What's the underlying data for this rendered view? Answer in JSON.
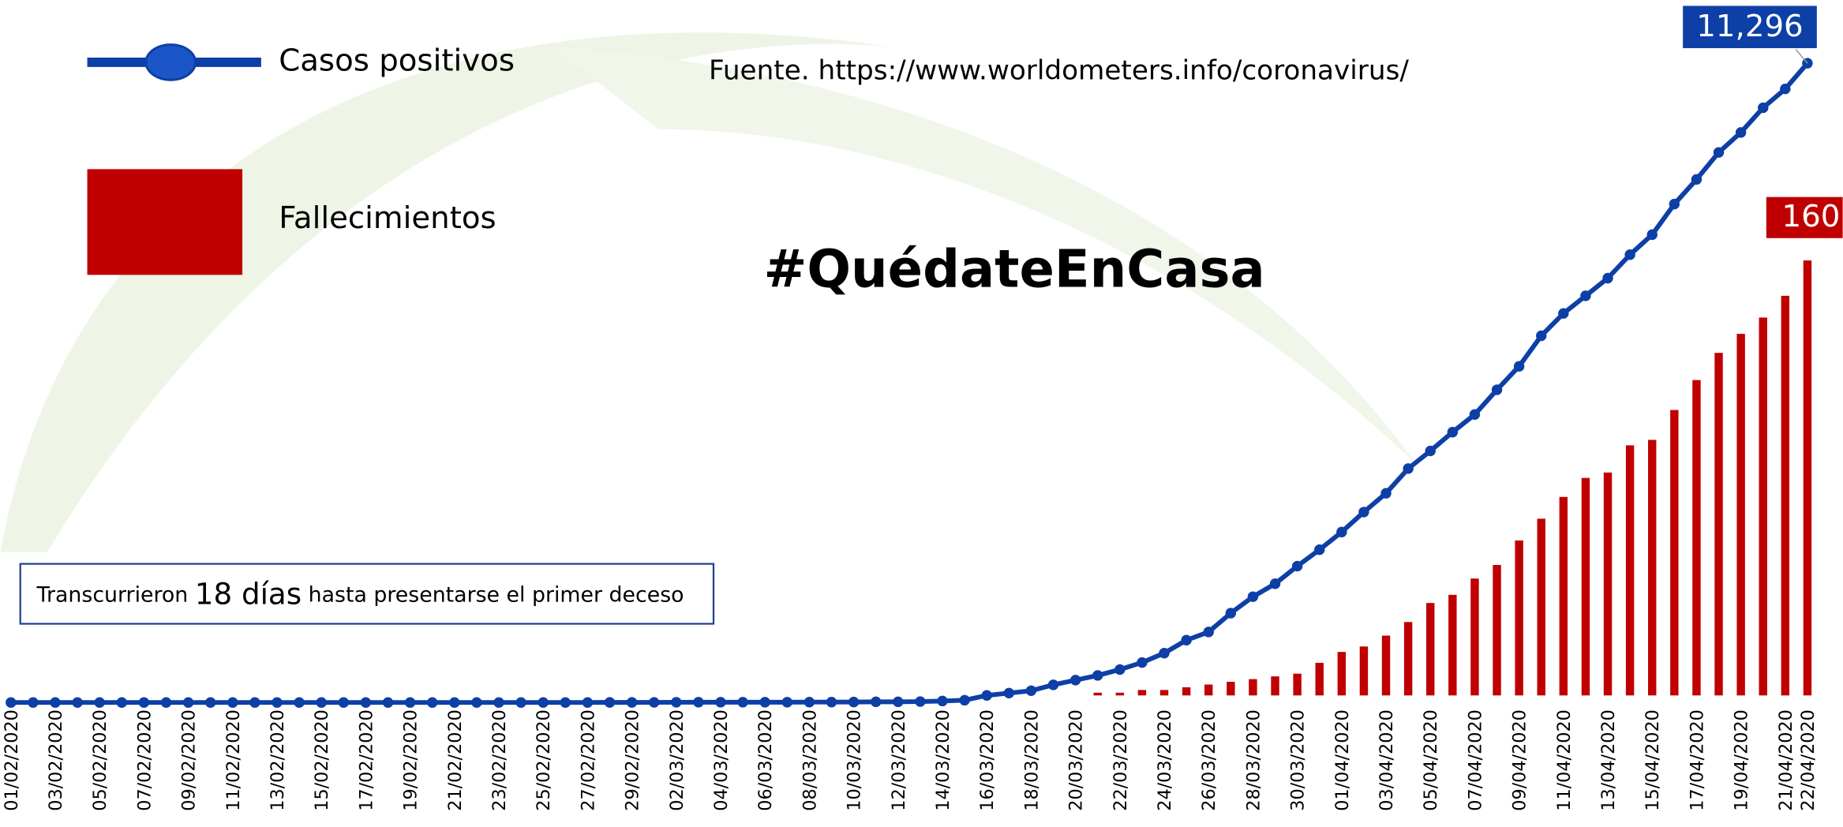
{
  "chart_data": {
    "type": "line-bar",
    "source": "Fuente. https://www.worldometers.info/coronavirus/",
    "hashtag": "#QuédateEnCasa",
    "annotation": {
      "before": "Transcurrieron",
      "emphasis": "18 días",
      "after": "hasta presentarse el primer deceso"
    },
    "categories": [
      "01/02/2020",
      null,
      "03/02/2020",
      null,
      "05/02/2020",
      null,
      "07/02/2020",
      null,
      "09/02/2020",
      null,
      "11/02/2020",
      null,
      "13/02/2020",
      null,
      "15/02/2020",
      null,
      "17/02/2020",
      null,
      "19/02/2020",
      null,
      "21/02/2020",
      null,
      "23/02/2020",
      null,
      "25/02/2020",
      null,
      "27/02/2020",
      null,
      "29/02/2020",
      null,
      "02/03/2020",
      null,
      "04/03/2020",
      null,
      "06/03/2020",
      null,
      "08/03/2020",
      null,
      "10/03/2020",
      null,
      "12/03/2020",
      null,
      "14/03/2020",
      null,
      "16/03/2020",
      null,
      "18/03/2020",
      null,
      "20/03/2020",
      null,
      "22/03/2020",
      null,
      "24/03/2020",
      null,
      "26/03/2020",
      null,
      "28/03/2020",
      null,
      "30/03/2020",
      null,
      "01/04/2020",
      null,
      "03/04/2020",
      null,
      "05/04/2020",
      null,
      "07/04/2020",
      null,
      "09/04/2020",
      null,
      "11/04/2020",
      null,
      "13/04/2020",
      null,
      "15/04/2020",
      null,
      "17/04/2020",
      null,
      "19/04/2020",
      null,
      "21/04/2020",
      "22/04/2020"
    ],
    "series": [
      {
        "name": "Casos positivos",
        "kind": "line",
        "color": "#0d3fa6",
        "values": [
          0,
          0,
          0,
          0,
          0,
          0,
          0,
          0,
          0,
          0,
          0,
          0,
          0,
          0,
          0,
          0,
          0,
          0,
          0,
          0,
          0,
          0,
          0,
          0,
          0,
          0,
          0,
          1,
          1,
          2,
          4,
          5,
          5,
          5,
          5,
          5,
          7,
          7,
          8,
          12,
          12,
          16,
          26,
          40,
          125,
          166,
          208,
          312,
          395,
          478,
          582,
          706,
          872,
          1101,
          1246,
          1579,
          1869,
          2098,
          2409,
          2700,
          3012,
          3365,
          3697,
          4133,
          4445,
          4777,
          5089,
          5525,
          5940,
          6480,
          6875,
          7186,
          7498,
          7913,
          8267,
          8807,
          9243,
          9720,
          10073,
          10509,
          10842,
          11296
        ],
        "value_labels": [
          null,
          null,
          null,
          null,
          null,
          null,
          null,
          null,
          null,
          null,
          null,
          null,
          null,
          null,
          null,
          null,
          null,
          null,
          null,
          null,
          null,
          null,
          null,
          null,
          null,
          null,
          null,
          null,
          null,
          null,
          null,
          null,
          null,
          null,
          null,
          null,
          null,
          null,
          null,
          null,
          null,
          null,
          null,
          null,
          null,
          null,
          null,
          null,
          null,
          null,
          null,
          null,
          null,
          null,
          null,
          null,
          null,
          null,
          null,
          null,
          null,
          null,
          null,
          null,
          null,
          null,
          null,
          null,
          null,
          null,
          null,
          null,
          null,
          null,
          null,
          null,
          null,
          null,
          null,
          null,
          null,
          "11,296"
        ]
      },
      {
        "name": "Fallecimientos",
        "kind": "bar",
        "color": "#c00000",
        "axis": "y2",
        "values": [
          0,
          0,
          0,
          0,
          0,
          0,
          0,
          0,
          0,
          0,
          0,
          0,
          0,
          0,
          0,
          0,
          0,
          0,
          0,
          0,
          0,
          0,
          0,
          0,
          0,
          0,
          0,
          0,
          0,
          0,
          0,
          0,
          0,
          0,
          0,
          0,
          0,
          0,
          0,
          0,
          0,
          0,
          0,
          0,
          0,
          0,
          0,
          0,
          0,
          1,
          1,
          2,
          2,
          3,
          4,
          5,
          6,
          7,
          8,
          12,
          16,
          18,
          22,
          27,
          34,
          37,
          43,
          48,
          57,
          65,
          73,
          80,
          82,
          92,
          94,
          105,
          116,
          126,
          133,
          139,
          147,
          160
        ]
      }
    ],
    "ylim": [
      0,
      11500
    ],
    "y2lim": [
      0,
      175
    ]
  }
}
